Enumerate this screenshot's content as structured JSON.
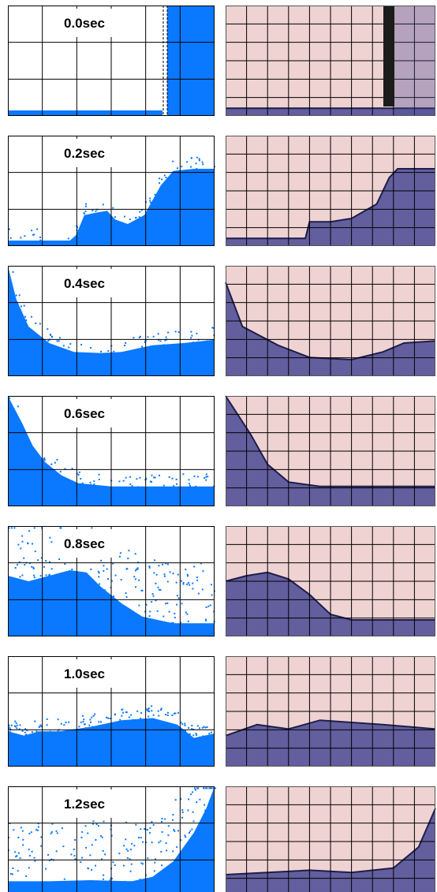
{
  "colors": {
    "water_sim": "#0a78ff",
    "tank_background": "#efd2d2",
    "water_experiment": "#4a4a95",
    "grid": "#000000"
  },
  "frames": [
    {
      "label": "0.0sec"
    },
    {
      "label": "0.2sec"
    },
    {
      "label": "0.4sec"
    },
    {
      "label": "0.6sec"
    },
    {
      "label": "0.8sec"
    },
    {
      "label": "1.0sec"
    },
    {
      "label": "1.2sec"
    }
  ]
}
